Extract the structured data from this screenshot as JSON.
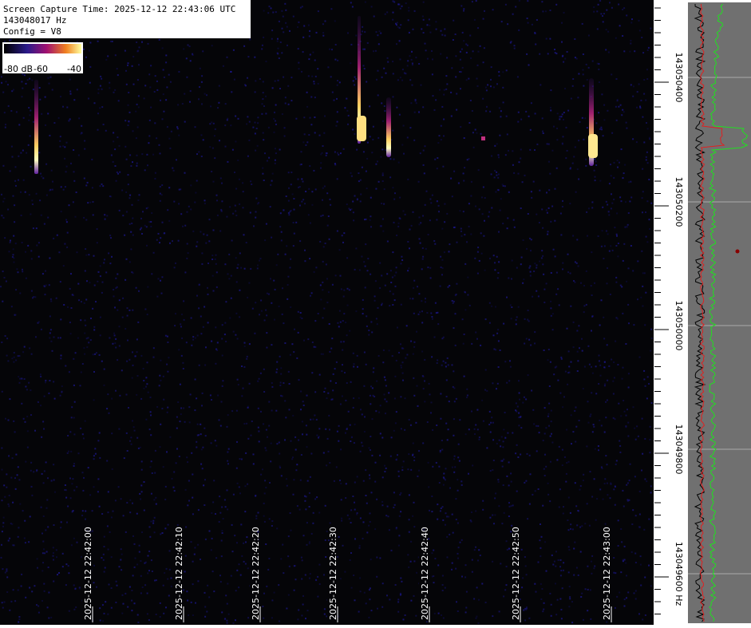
{
  "header": {
    "lines": [
      "Screen Capture Time: 2025-12-12 22:43:06 UTC",
      "143048017 Hz",
      "Config = V8"
    ]
  },
  "colorbar": {
    "labels": [
      "-80 dB",
      "-60",
      "-40"
    ]
  },
  "time_axis": {
    "labels": [
      "2025-12-12 22:42:00",
      "2025-12-12 22:42:10",
      "2025-12-12 22:42:20",
      "2025-12-12 22:42:30",
      "2025-12-12 22:42:40",
      "2025-12-12 22:42:50",
      "2025-12-12 22:43:00"
    ]
  },
  "frequency_axis": {
    "labels": [
      "143050400",
      "143050200",
      "143050000",
      "143049800",
      "143049600 Hz"
    ]
  }
}
